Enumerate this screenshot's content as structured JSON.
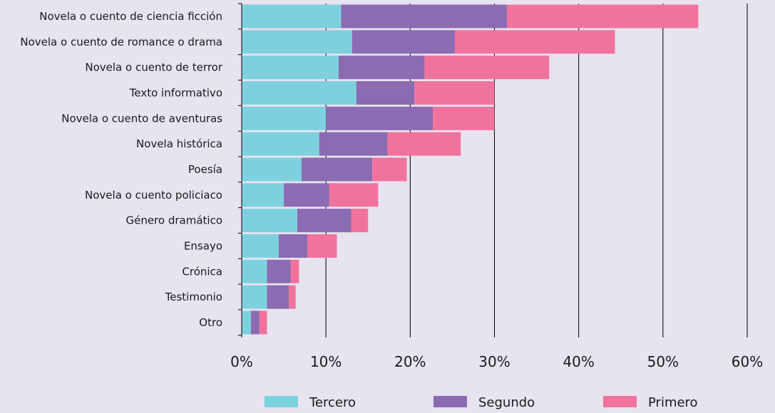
{
  "chart_data": {
    "type": "bar",
    "orientation": "horizontal",
    "stacked": true,
    "categories": [
      "Novela o cuento de ciencia ficción",
      "Novela o cuento de romance o drama",
      "Novela o cuento de terror",
      "Texto informativo",
      "Novela o cuento de aventuras",
      "Novela histórica",
      "Poesía",
      "Novela o cuento policiaco",
      "Género dramático",
      "Ensayo",
      "Crónica",
      "Testimonio",
      "Otro"
    ],
    "series": [
      {
        "name": "Tercero",
        "color": "#7dd1de",
        "values": [
          11.8,
          13.1,
          11.5,
          13.6,
          10.0,
          9.2,
          7.1,
          5.0,
          6.6,
          4.4,
          3.0,
          3.0,
          1.1
        ]
      },
      {
        "name": "Segundo",
        "color": "#8b6bb1",
        "values": [
          19.7,
          12.2,
          10.2,
          6.9,
          12.7,
          8.1,
          8.4,
          5.4,
          6.4,
          3.4,
          2.8,
          2.6,
          1.0
        ]
      },
      {
        "name": "Primero",
        "color": "#f0739e",
        "values": [
          22.7,
          19.0,
          14.8,
          9.5,
          7.3,
          8.7,
          4.1,
          5.8,
          2.0,
          3.5,
          1.0,
          0.8,
          0.9
        ]
      }
    ],
    "xlim": [
      0,
      60
    ],
    "xticks": [
      "0%",
      "10%",
      "20%",
      "30%",
      "40%",
      "50%",
      "60%"
    ],
    "xlabel": "",
    "ylabel": "",
    "title": "",
    "grid": true,
    "legend_position": "bottom"
  }
}
